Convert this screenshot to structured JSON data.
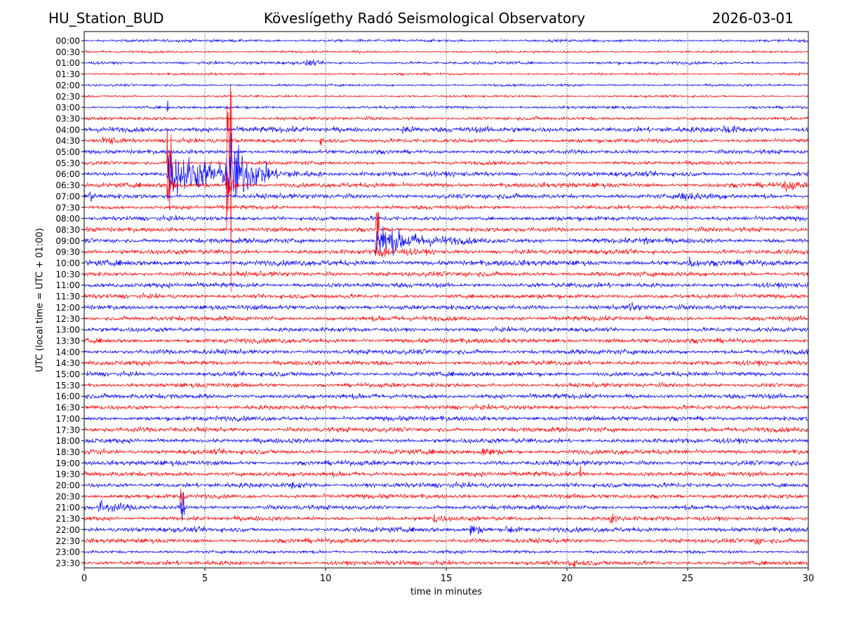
{
  "header": {
    "station": "HU_Station_BUD",
    "title": "Köveslígethy Radó Seismological Observatory",
    "date": "2026-03-01"
  },
  "colors": {
    "trace_a": "#0000ff",
    "trace_b": "#ff0000",
    "axis": "#000000"
  },
  "chart_data": {
    "type": "line",
    "title": "Köveslígethy Radó Seismological Observatory",
    "xlabel": "time in minutes",
    "ylabel": "UTC (local time = UTC + 01:00)",
    "xlim": [
      0,
      30
    ],
    "x_ticks": [
      "0",
      "5",
      "10",
      "15",
      "20",
      "25",
      "30"
    ],
    "grid": "vertical dotted at 5-minute ticks",
    "rows": [
      "00:00",
      "00:30",
      "01:00",
      "01:30",
      "02:00",
      "02:30",
      "03:00",
      "03:30",
      "04:00",
      "04:30",
      "05:00",
      "05:30",
      "06:00",
      "06:30",
      "07:00",
      "07:30",
      "08:00",
      "08:30",
      "09:00",
      "09:30",
      "10:00",
      "10:30",
      "11:00",
      "11:30",
      "12:00",
      "12:30",
      "13:00",
      "13:30",
      "14:00",
      "14:30",
      "15:00",
      "15:30",
      "16:00",
      "16:30",
      "17:00",
      "17:30",
      "18:00",
      "18:30",
      "19:00",
      "19:30",
      "20:00",
      "20:30",
      "21:00",
      "21:30",
      "22:00",
      "22:30",
      "23:00",
      "23:30"
    ],
    "base_noise": [
      1.5,
      1.2,
      1.6,
      1.2,
      1.3,
      1.2,
      1.5,
      1.8,
      3.0,
      2.2,
      2.2,
      2.0,
      2.6,
      2.6,
      2.6,
      2.2,
      2.4,
      2.4,
      2.8,
      2.6,
      3.0,
      2.6,
      2.6,
      2.4,
      2.6,
      2.6,
      2.4,
      2.6,
      2.6,
      2.6,
      2.6,
      2.4,
      2.6,
      2.4,
      2.6,
      2.6,
      2.6,
      2.6,
      2.6,
      2.6,
      2.6,
      2.4,
      2.4,
      2.4,
      2.6,
      2.4,
      1.8,
      2.4
    ],
    "events": [
      {
        "row": "01:00",
        "minute": 9.2,
        "duration": 1.0,
        "amplitude": 4
      },
      {
        "row": "03:00",
        "minute": 3.45,
        "duration": 0.05,
        "amplitude": 10
      },
      {
        "row": "04:00",
        "minute": 13.2,
        "duration": 1.0,
        "amplitude": 5
      },
      {
        "row": "04:00",
        "minute": 26.5,
        "duration": 1.5,
        "amplitude": 4
      },
      {
        "row": "04:30",
        "minute": 0.8,
        "duration": 1.5,
        "amplitude": 8
      },
      {
        "row": "04:30",
        "minute": 9.8,
        "duration": 1.0,
        "amplitude": 4
      },
      {
        "row": "05:30",
        "minute": 3.45,
        "duration": 0.2,
        "amplitude": 95
      },
      {
        "row": "05:30",
        "minute": 5.9,
        "duration": 0.2,
        "amplitude": 150
      },
      {
        "row": "06:00",
        "minute": 3.45,
        "duration": 6.5,
        "amplitude": 30
      },
      {
        "row": "06:00",
        "minute": 5.9,
        "duration": 2.0,
        "amplitude": 55
      },
      {
        "row": "06:30",
        "minute": 3.45,
        "duration": 0.4,
        "amplitude": 40
      },
      {
        "row": "06:30",
        "minute": 5.9,
        "duration": 0.5,
        "amplitude": 40
      },
      {
        "row": "06:30",
        "minute": 29.0,
        "duration": 1.0,
        "amplitude": 8
      },
      {
        "row": "07:00",
        "minute": 0.2,
        "duration": 0.5,
        "amplitude": 6
      },
      {
        "row": "07:00",
        "minute": 24.6,
        "duration": 2.5,
        "amplitude": 5
      },
      {
        "row": "08:30",
        "minute": 12.1,
        "duration": 0.1,
        "amplitude": 40
      },
      {
        "row": "09:00",
        "minute": 12.1,
        "duration": 4.0,
        "amplitude": 22
      },
      {
        "row": "09:00",
        "minute": 23.2,
        "duration": 0.6,
        "amplitude": 7
      },
      {
        "row": "09:30",
        "minute": 12.1,
        "duration": 2.5,
        "amplitude": 8
      },
      {
        "row": "10:00",
        "minute": 25.1,
        "duration": 0.6,
        "amplitude": 7
      },
      {
        "row": "12:00",
        "minute": 22.6,
        "duration": 0.6,
        "amplitude": 8
      },
      {
        "row": "18:30",
        "minute": 0.2,
        "duration": 0.8,
        "amplitude": 7
      },
      {
        "row": "18:30",
        "minute": 16.5,
        "duration": 1.3,
        "amplitude": 6
      },
      {
        "row": "19:30",
        "minute": 20.5,
        "duration": 0.4,
        "amplitude": 12
      },
      {
        "row": "20:00",
        "minute": 8.5,
        "duration": 1.2,
        "amplitude": 5
      },
      {
        "row": "20:30",
        "minute": 4.0,
        "duration": 0.1,
        "amplitude": 12
      },
      {
        "row": "21:00",
        "minute": 0.6,
        "duration": 2.4,
        "amplitude": 7
      },
      {
        "row": "21:00",
        "minute": 4.0,
        "duration": 0.15,
        "amplitude": 18
      },
      {
        "row": "21:30",
        "minute": 14.5,
        "duration": 0.8,
        "amplitude": 6
      },
      {
        "row": "21:30",
        "minute": 21.8,
        "duration": 0.7,
        "amplitude": 7
      },
      {
        "row": "22:00",
        "minute": 16.0,
        "duration": 1.2,
        "amplitude": 8
      },
      {
        "row": "22:00",
        "minute": 17.5,
        "duration": 1.0,
        "amplitude": 6
      },
      {
        "row": "22:30",
        "minute": 27.8,
        "duration": 0.6,
        "amplitude": 5
      },
      {
        "row": "23:30",
        "minute": 20.0,
        "duration": 1.2,
        "amplitude": 5
      }
    ]
  }
}
